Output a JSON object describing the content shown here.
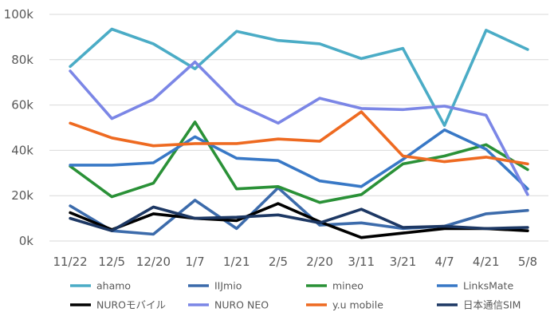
{
  "chart_data": {
    "type": "line",
    "title": "",
    "xlabel": "",
    "ylabel": "",
    "ylim": [
      0,
      100000
    ],
    "y_ticks": [
      0,
      20000,
      40000,
      60000,
      80000,
      100000
    ],
    "y_tick_labels": [
      "0k",
      "20k",
      "40k",
      "60k",
      "80k",
      "100k"
    ],
    "grid": true,
    "legend_position": "bottom",
    "categories": [
      "11/22",
      "12/5",
      "12/20",
      "1/7",
      "1/21",
      "2/5",
      "2/20",
      "3/11",
      "3/21",
      "4/7",
      "4/21",
      "5/8"
    ],
    "series": [
      {
        "name": "ahamo",
        "color": "#4bacc6",
        "values": [
          77000,
          93500,
          87000,
          76000,
          92500,
          88500,
          87000,
          80500,
          85000,
          51000,
          93000,
          84500
        ]
      },
      {
        "name": "IIJmio",
        "color": "#3c6bab",
        "values": [
          15500,
          4500,
          3000,
          18000,
          5500,
          23500,
          7000,
          8000,
          5500,
          6500,
          12000,
          13500
        ]
      },
      {
        "name": "mineo",
        "color": "#2a9137",
        "values": [
          33000,
          19500,
          25500,
          52500,
          23000,
          24000,
          17000,
          20500,
          34000,
          37500,
          42500,
          31500
        ]
      },
      {
        "name": "LinksMate",
        "color": "#3878c6",
        "values": [
          33500,
          33500,
          34500,
          46000,
          36500,
          35500,
          26500,
          24000,
          36000,
          49000,
          40500,
          23000
        ]
      },
      {
        "name": "NUROモバイル",
        "color": "#000000",
        "values": [
          12500,
          5000,
          12000,
          10000,
          9000,
          16500,
          8500,
          1500,
          3500,
          5500,
          5500,
          4500
        ]
      },
      {
        "name": "NURO NEO",
        "color": "#7b86e6",
        "values": [
          75000,
          54000,
          62500,
          79000,
          60500,
          52000,
          63000,
          58500,
          58000,
          59500,
          55500,
          20500
        ]
      },
      {
        "name": "y.u mobile",
        "color": "#ee6a21",
        "values": [
          52000,
          45500,
          42000,
          43000,
          43000,
          45000,
          44000,
          57000,
          37500,
          35000,
          37000,
          34000
        ]
      },
      {
        "name": "日本通信SIM",
        "color": "#1d3864",
        "values": [
          10000,
          4500,
          15000,
          10000,
          10500,
          11500,
          8000,
          14000,
          6000,
          6500,
          5500,
          6000
        ]
      }
    ]
  }
}
